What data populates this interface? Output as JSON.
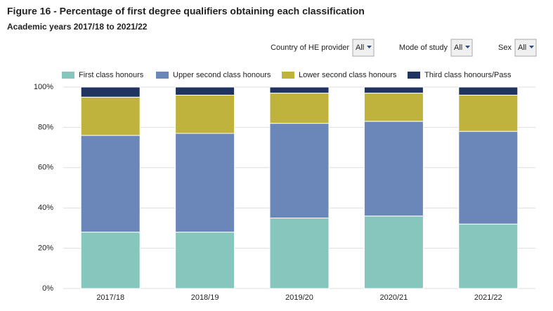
{
  "chart_data": {
    "type": "stacked_bar",
    "title": "Figure 16 - Percentage of first degree qualifiers obtaining each classification",
    "subtitle": "Academic years 2017/18 to 2021/22",
    "categories": [
      "2017/18",
      "2018/19",
      "2019/20",
      "2020/21",
      "2021/22"
    ],
    "series": [
      {
        "name": "First class honours",
        "color": "#86c6bc",
        "values": [
          28,
          28,
          35,
          36,
          32
        ]
      },
      {
        "name": "Upper second class honours",
        "color": "#6b86b8",
        "values": [
          48,
          49,
          47,
          47,
          46
        ]
      },
      {
        "name": "Lower second class honours",
        "color": "#bfb33e",
        "values": [
          19,
          19,
          15,
          14,
          18
        ]
      },
      {
        "name": "Third class honours/Pass",
        "color": "#1f3461",
        "values": [
          5,
          4,
          3,
          3,
          4
        ]
      }
    ],
    "ylim": [
      0,
      100
    ],
    "yticks": [
      {
        "value": 0,
        "label": "0%"
      },
      {
        "value": 20,
        "label": "20%"
      },
      {
        "value": 40,
        "label": "40%"
      },
      {
        "value": 60,
        "label": "60%"
      },
      {
        "value": 80,
        "label": "80%"
      },
      {
        "value": 100,
        "label": "100%"
      }
    ],
    "grid": true
  },
  "filters": [
    {
      "label": "Country of HE provider",
      "value": "All"
    },
    {
      "label": "Mode of study",
      "value": "All"
    },
    {
      "label": "Sex",
      "value": "All"
    }
  ]
}
